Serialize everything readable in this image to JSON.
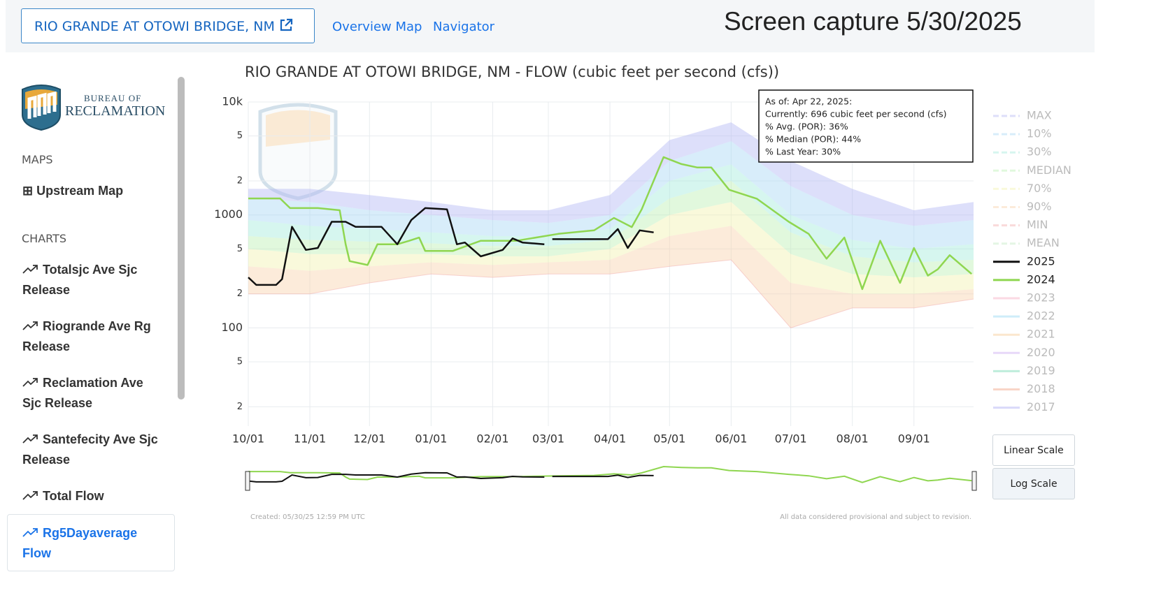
{
  "header": {
    "station": "RIO GRANDE AT OTOWI BRIDGE, NM",
    "links": [
      "Overview Map",
      "Navigator"
    ],
    "caption": "Screen capture 5/30/2025"
  },
  "sidebar": {
    "logo_top": "BUREAU OF",
    "logo_bottom": "RECLAMATION",
    "maps_heading": "MAPS",
    "maps": [
      "Upstream Map"
    ],
    "charts_heading": "CHARTS",
    "charts": [
      "Totalsjc Ave Sjc Release",
      "Riogrande Ave Rg Release",
      "Reclamation Ave Sjc Release",
      "Santefecity Ave Sjc Release",
      "Total Flow",
      "Rg5Dayaverage Flow"
    ],
    "active_chart": 5
  },
  "chart_data": {
    "type": "line",
    "title": "RIO GRANDE AT OTOWI BRIDGE, NM - FLOW (cubic feet per second (cfs))",
    "log_scale": true,
    "grid": true,
    "xlim": [
      0,
      365
    ],
    "xticks": [
      {
        "value": 0,
        "label": "10/01"
      },
      {
        "value": 31,
        "label": "11/01"
      },
      {
        "value": 61,
        "label": "12/01"
      },
      {
        "value": 92,
        "label": "01/01"
      },
      {
        "value": 123,
        "label": "02/01"
      },
      {
        "value": 151,
        "label": "03/01"
      },
      {
        "value": 182,
        "label": "04/01"
      },
      {
        "value": 212,
        "label": "05/01"
      },
      {
        "value": 243,
        "label": "06/01"
      },
      {
        "value": 273,
        "label": "07/01"
      },
      {
        "value": 304,
        "label": "08/01"
      },
      {
        "value": 335,
        "label": "09/01"
      }
    ],
    "ylim": [
      13.5,
      10000
    ],
    "yticks": [
      {
        "value": 10000,
        "label": "10k"
      },
      {
        "value": 5000,
        "label": "5"
      },
      {
        "value": 2000,
        "label": "2"
      },
      1000,
      {
        "value": 500,
        "label": "5"
      },
      {
        "value": 200,
        "label": "2"
      },
      100,
      {
        "value": 50,
        "label": "5"
      },
      {
        "value": 20,
        "label": "2"
      }
    ],
    "series": [
      {
        "name": "MAX",
        "color": "#b4b8f4",
        "kind": "band",
        "inactive": true,
        "x": [
          0,
          31,
          61,
          92,
          123,
          151,
          182,
          212,
          243,
          273,
          304,
          335,
          365
        ],
        "values": [
          1700,
          1700,
          1500,
          1300,
          1100,
          1100,
          1500,
          4600,
          6600,
          3000,
          1700,
          1100,
          1300
        ]
      },
      {
        "name": "10%",
        "color": "#a8d8f4",
        "kind": "band",
        "inactive": true,
        "x": [
          0,
          31,
          61,
          92,
          123,
          151,
          182,
          212,
          243,
          273,
          304,
          335,
          365
        ],
        "values": [
          1400,
          1300,
          1100,
          1000,
          900,
          850,
          1000,
          3000,
          4500,
          1800,
          1000,
          800,
          900
        ]
      },
      {
        "name": "30%",
        "color": "#a4ecdc",
        "kind": "band",
        "inactive": true,
        "x": [
          0,
          31,
          61,
          92,
          123,
          151,
          182,
          212,
          243,
          273,
          304,
          335,
          365
        ],
        "values": [
          900,
          800,
          750,
          700,
          650,
          650,
          750,
          2000,
          2800,
          1000,
          600,
          500,
          550
        ]
      },
      {
        "name": "MEDIAN",
        "color": "#bdf0b4",
        "kind": "band",
        "inactive": true,
        "x": [
          0,
          31,
          61,
          92,
          123,
          151,
          182,
          212,
          243,
          273,
          304,
          335,
          365
        ],
        "values": [
          650,
          600,
          580,
          560,
          530,
          530,
          600,
          1400,
          2000,
          700,
          430,
          380,
          400
        ]
      },
      {
        "name": "70%",
        "color": "#f2f2b0",
        "kind": "band",
        "inactive": true,
        "x": [
          0,
          31,
          61,
          92,
          123,
          151,
          182,
          212,
          243,
          273,
          304,
          335,
          365
        ],
        "values": [
          500,
          450,
          450,
          450,
          430,
          430,
          500,
          1000,
          1300,
          450,
          300,
          280,
          300
        ]
      },
      {
        "name": "90%",
        "color": "#f8d2ac",
        "kind": "band",
        "inactive": true,
        "x": [
          0,
          31,
          61,
          92,
          123,
          151,
          182,
          212,
          243,
          273,
          304,
          335,
          365
        ],
        "values": [
          350,
          320,
          350,
          380,
          360,
          380,
          400,
          650,
          800,
          250,
          200,
          200,
          220
        ]
      },
      {
        "name": "MIN",
        "color": "#f2acac",
        "kind": "band",
        "inactive": true,
        "x": [
          0,
          31,
          61,
          92,
          123,
          151,
          182,
          212,
          243,
          273,
          304,
          335,
          365
        ],
        "values": [
          200,
          200,
          250,
          300,
          280,
          300,
          300,
          350,
          400,
          100,
          150,
          150,
          180
        ]
      },
      {
        "name": "MEAN",
        "color": "#c4e8c4",
        "kind": "line",
        "inactive": true
      },
      {
        "name": "2025",
        "color": "#111111",
        "kind": "line",
        "inactive": false,
        "x": [
          0,
          4,
          14,
          17,
          22,
          29,
          35,
          42,
          49,
          54,
          60,
          67,
          75,
          82,
          89,
          100,
          105,
          109,
          117,
          128,
          133,
          138,
          149,
          151,
          153,
          167,
          181,
          186,
          191,
          197,
          204
        ],
        "values": [
          280,
          240,
          240,
          270,
          785,
          490,
          510,
          870,
          870,
          785,
          785,
          785,
          550,
          900,
          1150,
          1120,
          550,
          570,
          430,
          490,
          620,
          570,
          550,
          null,
          610,
          610,
          610,
          750,
          510,
          730,
          700
        ]
      },
      {
        "name": "2024",
        "color": "#8fd650",
        "kind": "line",
        "inactive": false,
        "x": [
          0,
          16,
          21,
          35,
          46,
          49,
          51,
          60,
          65,
          75,
          81,
          86,
          89,
          103,
          117,
          135,
          156,
          174,
          184,
          193,
          198,
          209,
          218,
          226,
          233,
          242,
          256,
          272,
          282,
          291,
          300,
          309,
          318,
          328,
          335,
          342,
          347,
          353,
          364
        ],
        "values": [
          1400,
          1400,
          1150,
          1150,
          1100,
          550,
          390,
          360,
          550,
          550,
          590,
          630,
          480,
          480,
          590,
          590,
          680,
          730,
          940,
          780,
          1120,
          3250,
          2820,
          2630,
          2630,
          1670,
          1390,
          870,
          680,
          410,
          630,
          220,
          590,
          250,
          510,
          290,
          330,
          440,
          300
        ]
      },
      {
        "name": "2023",
        "color": "#f7aac2",
        "kind": "line",
        "inactive": true
      },
      {
        "name": "2022",
        "color": "#92d8f2",
        "kind": "line",
        "inactive": true
      },
      {
        "name": "2021",
        "color": "#f7ca92",
        "kind": "line",
        "inactive": true
      },
      {
        "name": "2020",
        "color": "#caa8f2",
        "kind": "line",
        "inactive": true
      },
      {
        "name": "2019",
        "color": "#72d8b2",
        "kind": "line",
        "inactive": true
      },
      {
        "name": "2018",
        "color": "#f2a282",
        "kind": "line",
        "inactive": true
      },
      {
        "name": "2017",
        "color": "#aaaaf2",
        "kind": "line",
        "inactive": true
      }
    ],
    "tooltip": [
      "As of: Apr 22, 2025:",
      "Currently: 696 cubic feet per second (cfs)",
      "% Avg. (POR): 36%",
      "% Median (POR): 44%",
      "% Last Year: 30%"
    ],
    "buttons": [
      "Linear Scale",
      "Log Scale"
    ],
    "active_button": 1,
    "created": "Created: 05/30/25 12:59 PM UTC",
    "disclaimer": "All data considered provisional and subject to revision."
  }
}
